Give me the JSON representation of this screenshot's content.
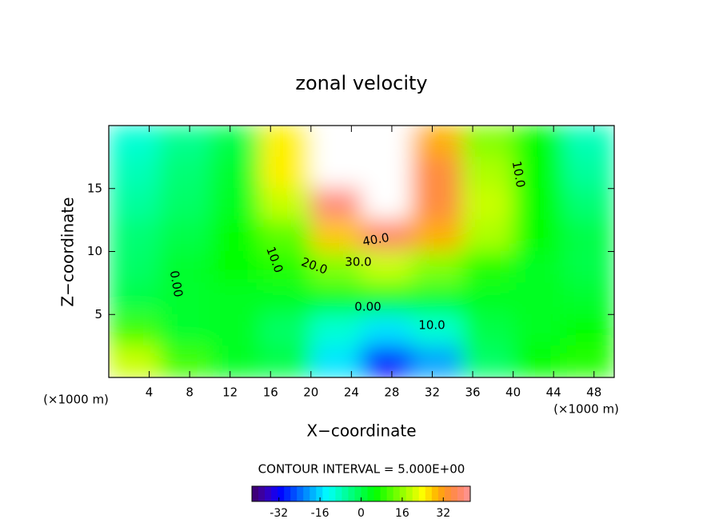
{
  "chart_data": {
    "type": "heatmap",
    "title": "zonal velocity",
    "xlabel": "X−coordinate",
    "ylabel": "Z−coordinate",
    "xunit": "(×1000 m)",
    "yunit": "(×1000 m)",
    "xlim": [
      0,
      50
    ],
    "ylim": [
      0,
      20
    ],
    "xticks": [
      4,
      8,
      12,
      16,
      20,
      24,
      28,
      32,
      36,
      40,
      44,
      48
    ],
    "yticks": [
      5,
      10,
      15
    ],
    "x": [
      2.5,
      7.5,
      12.5,
      17.5,
      22.5,
      27.5,
      32.5,
      37.5,
      42.5,
      47.5
    ],
    "z": [
      18.75,
      16.25,
      13.75,
      11.25,
      8.75,
      6.25,
      3.75,
      1.25
    ],
    "values": [
      [
        -10,
        -5,
        0,
        25,
        45,
        45,
        30,
        15,
        5,
        -8
      ],
      [
        -8,
        -3,
        2,
        25,
        45,
        45,
        35,
        18,
        5,
        -6
      ],
      [
        -6,
        -2,
        3,
        20,
        40,
        45,
        35,
        20,
        5,
        -3
      ],
      [
        -3,
        0,
        5,
        12,
        28,
        38,
        30,
        18,
        5,
        0
      ],
      [
        -2,
        2,
        5,
        8,
        15,
        20,
        15,
        8,
        3,
        0
      ],
      [
        0,
        2,
        3,
        3,
        3,
        3,
        2,
        3,
        3,
        2
      ],
      [
        10,
        2,
        3,
        -2,
        -10,
        -15,
        -10,
        0,
        3,
        5
      ],
      [
        20,
        10,
        3,
        0,
        -15,
        -30,
        -20,
        -2,
        5,
        8
      ]
    ],
    "contour_labels": [
      "0.00",
      "0.00",
      "10.0",
      "10.0",
      "10.0",
      "20.0",
      "30.0",
      "40.0"
    ],
    "contour_interval": "CONTOUR INTERVAL = 5.000E+00",
    "colorbar": {
      "lim": [
        -42.5,
        42.5
      ],
      "ticks": [
        -32,
        -16,
        0,
        16,
        32
      ]
    }
  }
}
